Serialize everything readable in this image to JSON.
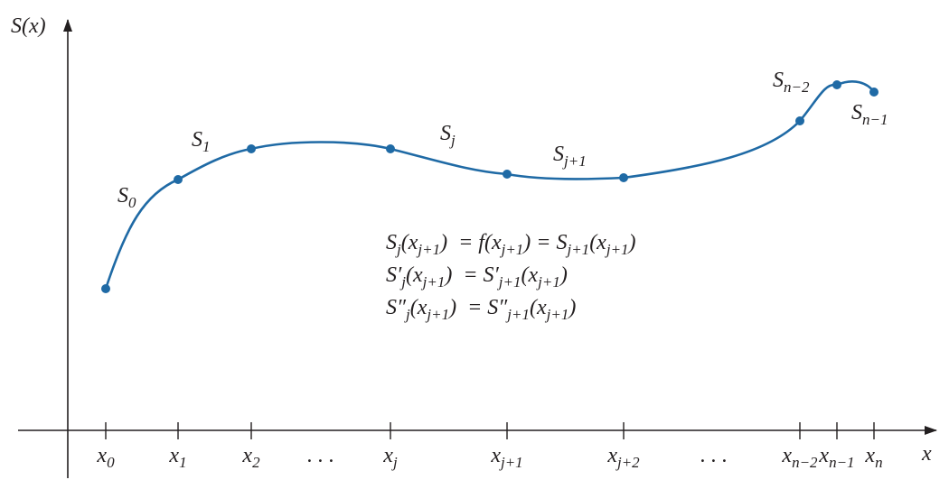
{
  "axes": {
    "y_label": [
      {
        "t": "S(x)"
      }
    ],
    "x_label": [
      {
        "t": "x"
      }
    ]
  },
  "tick_labels": [
    [
      {
        "t": "x"
      },
      {
        "s": "0"
      }
    ],
    [
      {
        "t": "x"
      },
      {
        "s": "1"
      }
    ],
    [
      {
        "t": "x"
      },
      {
        "s": "2"
      }
    ],
    [
      {
        "t": ". . ."
      }
    ],
    [
      {
        "t": "x"
      },
      {
        "s": "j"
      }
    ],
    [
      {
        "t": "x"
      },
      {
        "s": "j+1"
      }
    ],
    [
      {
        "t": "x"
      },
      {
        "s": "j+2"
      }
    ],
    [
      {
        "t": ". . ."
      }
    ],
    [
      {
        "t": "x"
      },
      {
        "s": "n−2"
      }
    ],
    [
      {
        "t": "x"
      },
      {
        "s": "n−1"
      }
    ],
    [
      {
        "t": "x"
      },
      {
        "s": "n"
      }
    ]
  ],
  "segment_labels": [
    [
      {
        "t": "S"
      },
      {
        "s": "0"
      }
    ],
    [
      {
        "t": "S"
      },
      {
        "s": "1"
      }
    ],
    [
      {
        "t": "S"
      },
      {
        "s": "j"
      }
    ],
    [
      {
        "t": "S"
      },
      {
        "s": "j+1"
      }
    ],
    [
      {
        "t": "S"
      },
      {
        "s": "n−2"
      }
    ],
    [
      {
        "t": "S"
      },
      {
        "s": "n−1"
      }
    ]
  ],
  "equations": [
    [
      {
        "t": "S"
      },
      {
        "s": "j"
      },
      {
        "t": "(x"
      },
      {
        "s": "j+1"
      },
      {
        "t": ")  = f(x"
      },
      {
        "s": "j+1"
      },
      {
        "t": ") = S"
      },
      {
        "s": "j+1"
      },
      {
        "t": "(x"
      },
      {
        "s": "j+1"
      },
      {
        "t": ")"
      }
    ],
    [
      {
        "t": "S′"
      },
      {
        "s": "j"
      },
      {
        "t": "(x"
      },
      {
        "s": "j+1"
      },
      {
        "t": ")  = S′"
      },
      {
        "s": "j+1"
      },
      {
        "t": "(x"
      },
      {
        "s": "j+1"
      },
      {
        "t": ")"
      }
    ],
    [
      {
        "t": "S″"
      },
      {
        "s": "j"
      },
      {
        "t": "(x"
      },
      {
        "s": "j+1"
      },
      {
        "t": ")  = S″"
      },
      {
        "s": "j+1"
      },
      {
        "t": "(x"
      },
      {
        "s": "j+1"
      },
      {
        "t": ")"
      }
    ]
  ]
}
